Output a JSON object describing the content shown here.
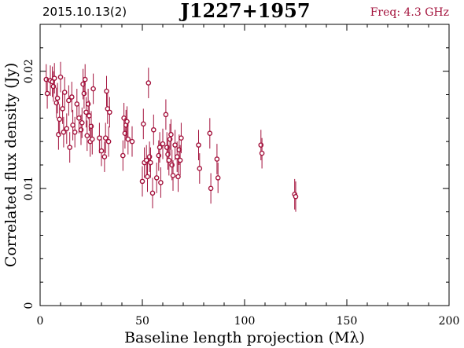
{
  "header": {
    "date_label": "2015.10.13(2)",
    "source_name": "J1227+1957",
    "freq_label": "Freq: 4.3 GHz"
  },
  "colors": {
    "points": "#a3123c",
    "axes": "#000000"
  },
  "chart_data": {
    "type": "scatter",
    "title": "J1227+1957",
    "xlabel": "Baseline length projection (Mλ)",
    "ylabel": "Correlated flux density (Jy)",
    "xlim": [
      0,
      200
    ],
    "ylim": [
      0,
      0.024
    ],
    "xticks": [
      0,
      50,
      100,
      150,
      200
    ],
    "xtick_labels": [
      "0",
      "50",
      "100",
      "150",
      "200"
    ],
    "yticks": [
      0,
      0.01,
      0.02
    ],
    "ytick_labels": [
      "0",
      "0.01",
      "0.02"
    ],
    "grid": false,
    "error_bar": 0.0013,
    "series": [
      {
        "points": [
          [
            3,
            0.0193
          ],
          [
            3.5,
            0.0181
          ],
          [
            5,
            0.0192
          ],
          [
            6,
            0.0191
          ],
          [
            6.5,
            0.0187
          ],
          [
            7,
            0.0194
          ],
          [
            8,
            0.0173
          ],
          [
            8.5,
            0.0177
          ],
          [
            9,
            0.0146
          ],
          [
            9.5,
            0.0159
          ],
          [
            10,
            0.0195
          ],
          [
            11,
            0.0168
          ],
          [
            11.5,
            0.0148
          ],
          [
            12,
            0.0182
          ],
          [
            13,
            0.0151
          ],
          [
            14,
            0.0175
          ],
          [
            14.5,
            0.0135
          ],
          [
            15.5,
            0.0178
          ],
          [
            16,
            0.0154
          ],
          [
            17,
            0.0148
          ],
          [
            18,
            0.0172
          ],
          [
            19,
            0.016
          ],
          [
            20,
            0.015
          ],
          [
            20.5,
            0.0156
          ],
          [
            21,
            0.0189
          ],
          [
            21.5,
            0.0181
          ],
          [
            22,
            0.0193
          ],
          [
            22.5,
            0.0165
          ],
          [
            23,
            0.0145
          ],
          [
            23.5,
            0.0172
          ],
          [
            24,
            0.0162
          ],
          [
            24.5,
            0.014
          ],
          [
            25,
            0.0153
          ],
          [
            25.5,
            0.0142
          ],
          [
            26,
            0.0185
          ],
          [
            29,
            0.0143
          ],
          [
            30,
            0.0132
          ],
          [
            31.5,
            0.0127
          ],
          [
            32,
            0.0143
          ],
          [
            32.5,
            0.0183
          ],
          [
            33,
            0.0168
          ],
          [
            33.5,
            0.014
          ],
          [
            34,
            0.0165
          ],
          [
            40.5,
            0.0128
          ],
          [
            41,
            0.016
          ],
          [
            41.5,
            0.0147
          ],
          [
            42,
            0.0154
          ],
          [
            42.5,
            0.0157
          ],
          [
            43,
            0.0142
          ],
          [
            45,
            0.014
          ],
          [
            50,
            0.0106
          ],
          [
            50.5,
            0.0155
          ],
          [
            51,
            0.0122
          ],
          [
            52,
            0.0124
          ],
          [
            52.5,
            0.011
          ],
          [
            53,
            0.019
          ],
          [
            53.5,
            0.0127
          ],
          [
            54,
            0.0122
          ],
          [
            55,
            0.0096
          ],
          [
            55.5,
            0.015
          ],
          [
            57,
            0.0109
          ],
          [
            58,
            0.0128
          ],
          [
            58.5,
            0.0135
          ],
          [
            59,
            0.0105
          ],
          [
            60,
            0.0138
          ],
          [
            61.5,
            0.0163
          ],
          [
            62,
            0.0135
          ],
          [
            62.5,
            0.0129
          ],
          [
            63,
            0.0124
          ],
          [
            63.5,
            0.0142
          ],
          [
            64,
            0.0146
          ],
          [
            64.5,
            0.012
          ],
          [
            65,
            0.0111
          ],
          [
            66,
            0.0137
          ],
          [
            67,
            0.0127
          ],
          [
            67.5,
            0.011
          ],
          [
            68,
            0.0133
          ],
          [
            68.5,
            0.0124
          ],
          [
            69,
            0.0143
          ],
          [
            77.5,
            0.0137
          ],
          [
            78,
            0.0117
          ],
          [
            83,
            0.0147
          ],
          [
            83.5,
            0.01
          ],
          [
            86.5,
            0.0125
          ],
          [
            87,
            0.0109
          ],
          [
            108,
            0.0137
          ],
          [
            108.5,
            0.013
          ],
          [
            124.5,
            0.0095
          ],
          [
            125,
            0.0093
          ]
        ]
      }
    ]
  }
}
